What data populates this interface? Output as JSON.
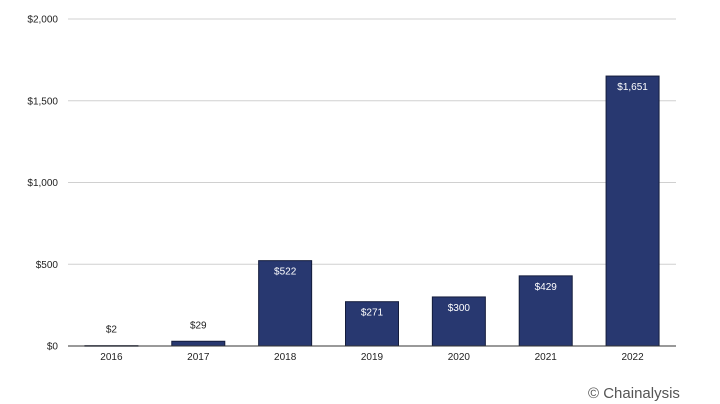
{
  "chart_data": {
    "type": "bar",
    "categories": [
      "2016",
      "2017",
      "2018",
      "2019",
      "2020",
      "2021",
      "2022"
    ],
    "values": [
      2,
      29,
      522,
      271,
      300,
      429,
      1651
    ],
    "value_labels": [
      "$2",
      "$29",
      "$522",
      "$271",
      "$300",
      "$429",
      "$1,651"
    ],
    "y_ticks": [
      0,
      500,
      1000,
      1500,
      2000
    ],
    "y_tick_labels": [
      "$0",
      "$500",
      "$1,000",
      "$1,500",
      "$2,000"
    ],
    "ylim": [
      0,
      2000
    ],
    "grid": true,
    "bar_color": "#283870"
  },
  "watermark": "© Chainalysis"
}
